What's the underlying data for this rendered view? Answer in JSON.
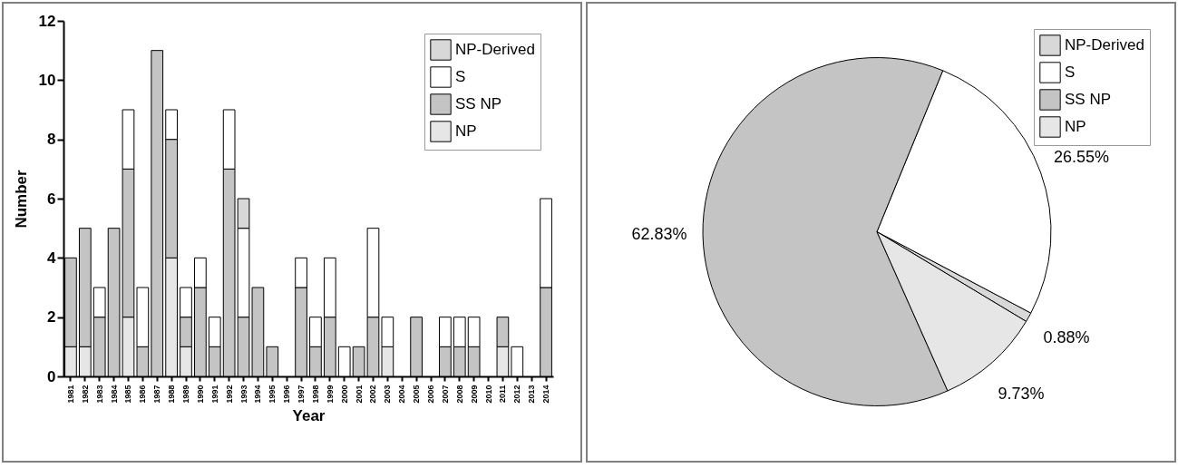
{
  "chart_data": [
    {
      "type": "bar",
      "stacked": true,
      "xlabel": "Year",
      "ylabel": "Number",
      "ylim": [
        0,
        12
      ],
      "yticks": [
        0,
        2,
        4,
        6,
        8,
        10,
        12
      ],
      "legend": "top right",
      "categories": [
        "1981",
        "1982",
        "1983",
        "1984",
        "1985",
        "1986",
        "1987",
        "1988",
        "1989",
        "1990",
        "1991",
        "1992",
        "1993",
        "1994",
        "1995",
        "1996",
        "1997",
        "1998",
        "1999",
        "2000",
        "2001",
        "2002",
        "2003",
        "2004",
        "2005",
        "2006",
        "2007",
        "2008",
        "2009",
        "2010",
        "2011",
        "2012",
        "2013",
        "2014"
      ],
      "series": [
        {
          "name": "NP",
          "color": "#e6e6e6",
          "values": [
            1,
            1,
            null,
            null,
            2,
            null,
            null,
            4,
            1,
            null,
            null,
            null,
            null,
            null,
            null,
            null,
            null,
            null,
            null,
            null,
            null,
            null,
            1,
            null,
            null,
            null,
            null,
            null,
            null,
            null,
            1,
            null,
            null,
            null
          ]
        },
        {
          "name": "SS NP",
          "color": "#c4c4c4",
          "values": [
            3,
            4,
            2,
            5,
            5,
            1,
            11,
            4,
            1,
            3,
            1,
            7,
            2,
            3,
            1,
            null,
            3,
            1,
            2,
            null,
            1,
            2,
            null,
            null,
            2,
            null,
            1,
            1,
            1,
            null,
            1,
            null,
            null,
            3
          ]
        },
        {
          "name": "S",
          "color": "#ffffff",
          "values": [
            null,
            null,
            1,
            null,
            2,
            2,
            null,
            1,
            1,
            1,
            1,
            2,
            3,
            null,
            null,
            null,
            1,
            1,
            2,
            1,
            null,
            3,
            1,
            null,
            null,
            null,
            1,
            1,
            1,
            null,
            null,
            1,
            null,
            3
          ]
        },
        {
          "name": "NP-Derived",
          "color": "#d8d8d8",
          "values": [
            null,
            null,
            null,
            null,
            null,
            null,
            null,
            null,
            null,
            null,
            null,
            null,
            1,
            null,
            null,
            null,
            null,
            null,
            null,
            null,
            null,
            null,
            null,
            null,
            null,
            null,
            null,
            null,
            null,
            null,
            null,
            null,
            null,
            null
          ]
        }
      ]
    },
    {
      "type": "pie",
      "legend": "top right",
      "categories": [
        "NP-Derived",
        "S",
        "SS NP",
        "NP"
      ],
      "values": [
        0.88,
        26.55,
        62.83,
        9.73
      ],
      "colors": [
        "#d8d8d8",
        "#ffffff",
        "#c4c4c4",
        "#e6e6e6"
      ],
      "value_labels": [
        "0.88%",
        "26.55%",
        "62.83%",
        "9.73%"
      ]
    }
  ]
}
